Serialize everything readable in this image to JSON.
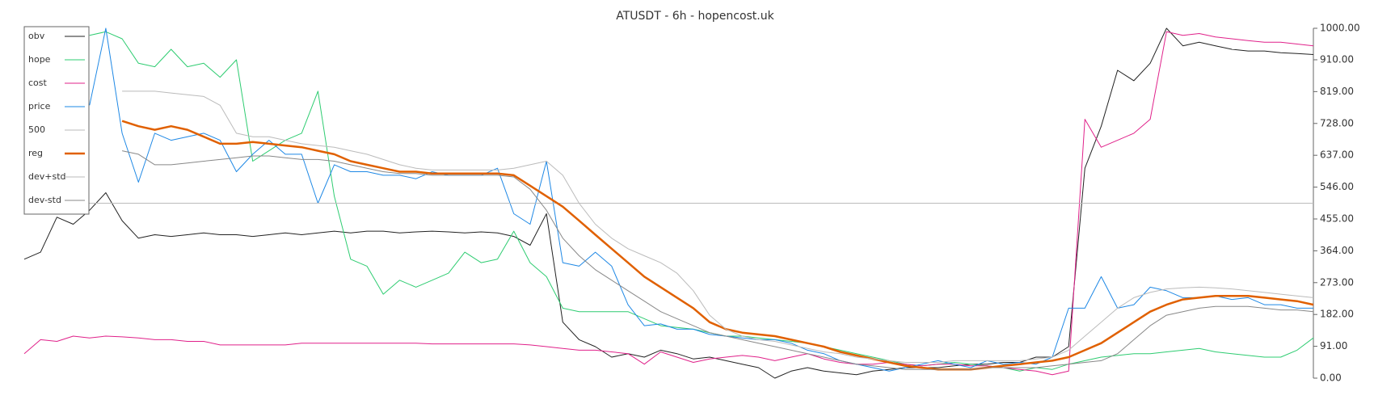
{
  "chart_data": {
    "type": "line",
    "title": "ATUSDT - 6h - hopencost.uk",
    "ylim": [
      0,
      1000
    ],
    "yticks": [
      {
        "value": 0,
        "label": "0.00"
      },
      {
        "value": 91,
        "label": "91.00"
      },
      {
        "value": 182,
        "label": "182.00"
      },
      {
        "value": 273,
        "label": "273.00"
      },
      {
        "value": 364,
        "label": "364.00"
      },
      {
        "value": 455,
        "label": "455.00"
      },
      {
        "value": 546,
        "label": "546.00"
      },
      {
        "value": 637,
        "label": "637.00"
      },
      {
        "value": 728,
        "label": "728.00"
      },
      {
        "value": 819,
        "label": "819.00"
      },
      {
        "value": 910,
        "label": "910.00"
      },
      {
        "value": 1000,
        "label": "1000.00"
      }
    ],
    "legend": "upper left",
    "series": [
      {
        "name": "obv",
        "color": "#222222",
        "width": 1,
        "values": [
          340,
          360,
          460,
          440,
          480,
          530,
          450,
          400,
          410,
          405,
          410,
          415,
          410,
          410,
          405,
          410,
          415,
          410,
          415,
          420,
          415,
          420,
          420,
          415,
          418,
          420,
          418,
          415,
          418,
          415,
          405,
          380,
          470,
          160,
          110,
          90,
          60,
          70,
          60,
          80,
          70,
          55,
          60,
          50,
          40,
          30,
          0,
          20,
          30,
          20,
          15,
          10,
          20,
          25,
          30,
          30,
          30,
          35,
          40,
          40,
          45,
          45,
          60,
          60,
          90,
          600,
          720,
          880,
          850,
          900,
          1000,
          950,
          960,
          950,
          940,
          935,
          935,
          930,
          928,
          925
        ]
      },
      {
        "name": "hope",
        "color": "#2ecc71",
        "width": 1,
        "values": [
          null,
          null,
          null,
          null,
          980,
          990,
          970,
          900,
          890,
          940,
          890,
          900,
          860,
          910,
          620,
          650,
          680,
          700,
          820,
          520,
          340,
          320,
          240,
          280,
          260,
          280,
          300,
          360,
          330,
          340,
          420,
          330,
          290,
          200,
          190,
          190,
          190,
          190,
          170,
          150,
          145,
          140,
          130,
          120,
          120,
          115,
          110,
          105,
          100,
          90,
          80,
          70,
          60,
          50,
          40,
          35,
          40,
          45,
          40,
          35,
          30,
          20,
          30,
          25,
          40,
          50,
          60,
          65,
          70,
          70,
          75,
          80,
          85,
          75,
          70,
          65,
          60,
          60,
          80,
          115
        ]
      },
      {
        "name": "cost",
        "color": "#e0218a",
        "width": 1,
        "values": [
          70,
          110,
          105,
          120,
          115,
          120,
          118,
          115,
          110,
          110,
          105,
          105,
          95,
          95,
          95,
          95,
          95,
          100,
          100,
          100,
          100,
          100,
          100,
          100,
          100,
          98,
          98,
          98,
          98,
          98,
          98,
          95,
          90,
          85,
          80,
          80,
          75,
          70,
          40,
          75,
          60,
          45,
          55,
          60,
          65,
          60,
          50,
          60,
          70,
          55,
          45,
          40,
          40,
          45,
          40,
          35,
          40,
          40,
          35,
          35,
          30,
          25,
          20,
          10,
          20,
          740,
          660,
          680,
          700,
          740,
          990,
          980,
          985,
          975,
          970,
          965,
          960,
          960,
          955,
          950
        ]
      },
      {
        "name": "price",
        "color": "#1e88e5",
        "width": 1,
        "values": [
          null,
          null,
          null,
          null,
          780,
          1000,
          700,
          560,
          700,
          680,
          690,
          700,
          680,
          590,
          640,
          680,
          640,
          640,
          500,
          610,
          590,
          590,
          580,
          580,
          570,
          590,
          580,
          580,
          580,
          600,
          470,
          440,
          620,
          330,
          320,
          360,
          320,
          210,
          150,
          155,
          140,
          140,
          125,
          120,
          115,
          110,
          110,
          100,
          80,
          70,
          50,
          40,
          30,
          20,
          30,
          40,
          50,
          40,
          30,
          50,
          40,
          45,
          40,
          60,
          200,
          200,
          290,
          200,
          210,
          260,
          250,
          230,
          230,
          235,
          225,
          230,
          210,
          210,
          200,
          200
        ]
      },
      {
        "name": "500",
        "color": "#bbbbbb",
        "width": 1,
        "values": [
          500,
          500,
          500,
          500,
          500,
          500,
          500,
          500,
          500,
          500,
          500,
          500,
          500,
          500,
          500,
          500,
          500,
          500,
          500,
          500,
          500,
          500,
          500,
          500,
          500,
          500,
          500,
          500,
          500,
          500,
          500,
          500,
          500,
          500,
          500,
          500,
          500,
          500,
          500,
          500,
          500,
          500,
          500,
          500,
          500,
          500,
          500,
          500,
          500,
          500,
          500,
          500,
          500,
          500,
          500,
          500,
          500,
          500,
          500,
          500,
          500,
          500,
          500,
          500,
          500,
          500,
          500,
          500,
          500,
          500,
          500,
          500,
          500,
          500,
          500,
          500,
          500,
          500,
          500,
          500
        ]
      },
      {
        "name": "reg",
        "color": "#e06000",
        "width": 2.5,
        "values": [
          null,
          null,
          null,
          null,
          null,
          null,
          735,
          720,
          710,
          720,
          710,
          690,
          670,
          670,
          675,
          670,
          665,
          660,
          650,
          640,
          620,
          610,
          600,
          590,
          590,
          585,
          585,
          585,
          585,
          585,
          580,
          550,
          520,
          490,
          450,
          410,
          370,
          330,
          290,
          260,
          230,
          200,
          160,
          140,
          130,
          125,
          120,
          110,
          100,
          90,
          75,
          65,
          55,
          45,
          35,
          30,
          25,
          25,
          25,
          30,
          35,
          40,
          45,
          50,
          60,
          80,
          100,
          130,
          160,
          190,
          210,
          225,
          230,
          235,
          235,
          235,
          230,
          225,
          220,
          210
        ]
      },
      {
        "name": "dev+std",
        "color": "#bbbbbb",
        "width": 1,
        "values": [
          null,
          null,
          null,
          null,
          null,
          null,
          820,
          820,
          820,
          815,
          810,
          805,
          780,
          700,
          690,
          690,
          680,
          670,
          665,
          660,
          650,
          640,
          625,
          610,
          600,
          595,
          595,
          595,
          595,
          595,
          600,
          610,
          620,
          580,
          500,
          440,
          400,
          370,
          350,
          330,
          300,
          250,
          180,
          140,
          120,
          110,
          105,
          95,
          85,
          75,
          70,
          60,
          55,
          50,
          45,
          45,
          45,
          50,
          50,
          50,
          50,
          50,
          55,
          60,
          80,
          120,
          160,
          200,
          230,
          245,
          255,
          258,
          260,
          258,
          255,
          250,
          245,
          240,
          235,
          230
        ]
      },
      {
        "name": "dev-std",
        "color": "#888888",
        "width": 1,
        "values": [
          null,
          null,
          null,
          null,
          null,
          null,
          650,
          640,
          610,
          610,
          615,
          620,
          625,
          630,
          635,
          635,
          630,
          625,
          625,
          620,
          610,
          600,
          590,
          585,
          585,
          580,
          580,
          580,
          580,
          580,
          575,
          540,
          480,
          400,
          350,
          310,
          280,
          250,
          220,
          190,
          170,
          150,
          130,
          120,
          110,
          100,
          90,
          80,
          70,
          60,
          50,
          40,
          35,
          30,
          25,
          25,
          25,
          25,
          25,
          30,
          30,
          30,
          30,
          35,
          40,
          45,
          50,
          70,
          110,
          150,
          180,
          190,
          200,
          205,
          205,
          205,
          200,
          195,
          195,
          190
        ]
      }
    ]
  }
}
